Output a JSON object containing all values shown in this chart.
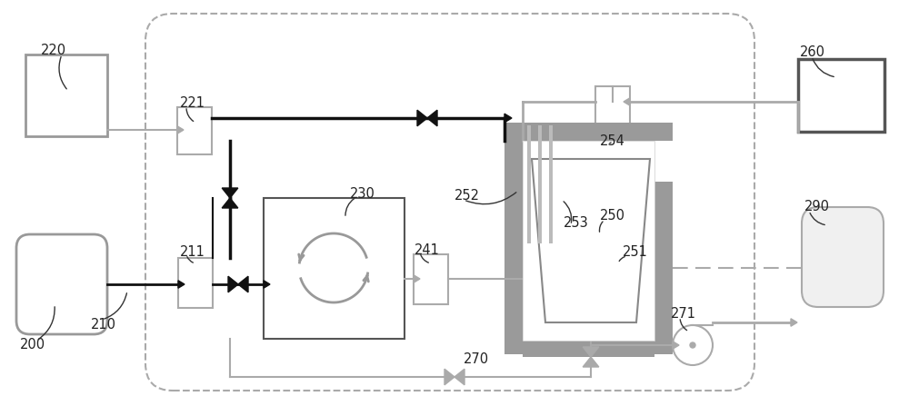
{
  "bg": "#ffffff",
  "lc": "#333333",
  "gc": "#999999",
  "lgc": "#aaaaaa",
  "dgc": "#555555",
  "blk": "#111111"
}
